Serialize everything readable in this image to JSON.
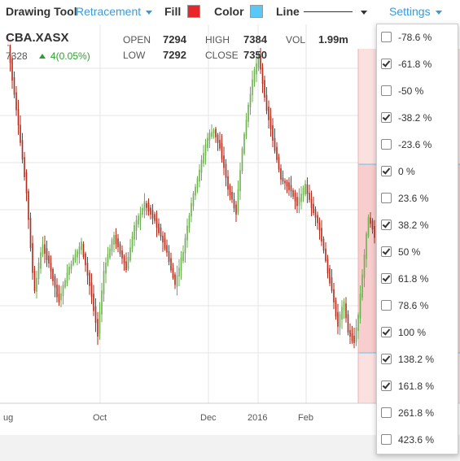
{
  "toolbar": {
    "drawing_tool_label": "Drawing Tool",
    "drawing_tool_value": "Retracement",
    "fill_label": "Fill",
    "fill_color": "#e8262a",
    "color_label": "Color",
    "line_color": "#5ac8f5",
    "line_label": "Line",
    "settings_label": "Settings"
  },
  "quote": {
    "symbol": "CBA.XASX",
    "last": "7328",
    "change": "4(0.05%)",
    "open_label": "OPEN",
    "open": "7294",
    "high_label": "HIGH",
    "high": "7384",
    "vol_label": "VOL",
    "vol": "1.99m",
    "low_label": "LOW",
    "low": "7292",
    "close_label": "CLOSE",
    "close": "7350"
  },
  "chart_data": {
    "type": "candlestick",
    "x_tick_labels": [
      "ug",
      "Oct",
      "Dec",
      "2016",
      "Feb"
    ],
    "up_color": "#6ab04c",
    "down_color": "#b22a1a",
    "grid": true
  },
  "retracement_levels": [
    {
      "label": "-78.6 %",
      "checked": false
    },
    {
      "label": "-61.8 %",
      "checked": true
    },
    {
      "label": "-50 %",
      "checked": false
    },
    {
      "label": "-38.2 %",
      "checked": true
    },
    {
      "label": "-23.6 %",
      "checked": false
    },
    {
      "label": "0 %",
      "checked": true
    },
    {
      "label": "23.6 %",
      "checked": false
    },
    {
      "label": "38.2 %",
      "checked": true
    },
    {
      "label": "50 %",
      "checked": true
    },
    {
      "label": "61.8 %",
      "checked": true
    },
    {
      "label": "78.6 %",
      "checked": false
    },
    {
      "label": "100 %",
      "checked": true
    },
    {
      "label": "138.2 %",
      "checked": true
    },
    {
      "label": "161.8 %",
      "checked": true
    },
    {
      "label": "261.8 %",
      "checked": false
    },
    {
      "label": "423.6 %",
      "checked": false
    }
  ]
}
